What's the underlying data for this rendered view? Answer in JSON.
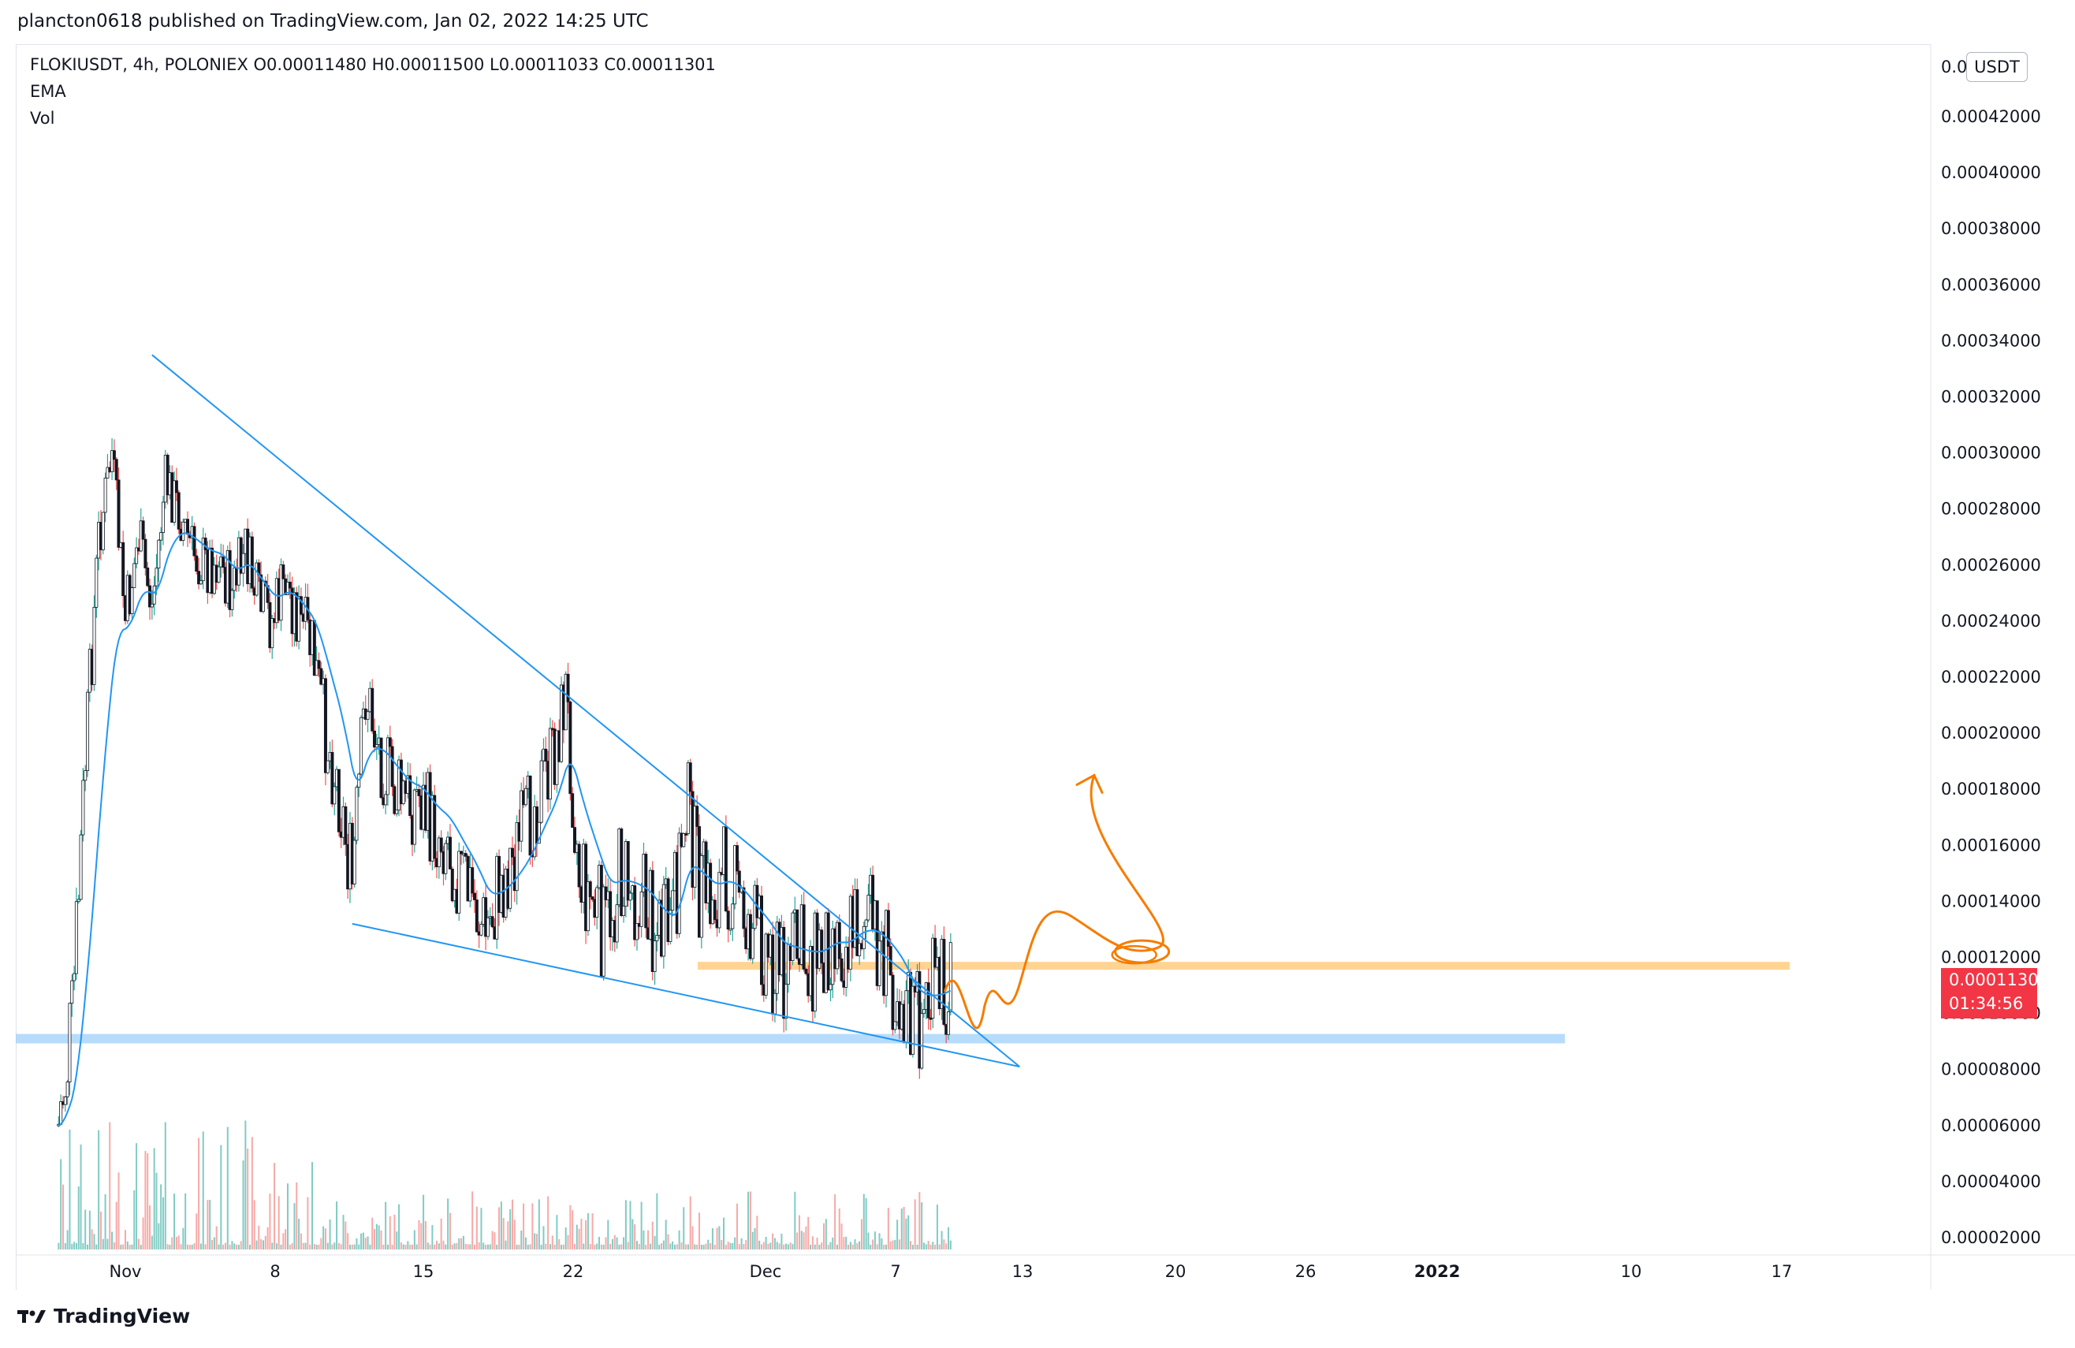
{
  "header": {
    "publisher_line": "plancton0618 published on TradingView.com, Jan 02, 2022 14:25 UTC"
  },
  "legend": {
    "symbol_line": "FLOKIUSDT, 4h, POLONIEX  O0.00011480  H0.00011500  L0.00011033  C0.00011301",
    "ema_label": "EMA",
    "vol_label": "Vol"
  },
  "price_axis": {
    "currency_badge": "USDT",
    "top_partial_label": "0.0",
    "labels": [
      "0.00042000",
      "0.00040000",
      "0.00038000",
      "0.00036000",
      "0.00034000",
      "0.00032000",
      "0.00030000",
      "0.00028000",
      "0.00026000",
      "0.00024000",
      "0.00022000",
      "0.00020000",
      "0.00018000",
      "0.00016000",
      "0.00014000",
      "0.00012000",
      "0.00010000",
      "0.00008000",
      "0.00006000",
      "0.00004000",
      "0.00002000"
    ]
  },
  "last_price": {
    "value": "0.00011301",
    "countdown": "01:34:56",
    "color": "#f23645"
  },
  "time_axis": {
    "labels": [
      {
        "text": "Nov",
        "bold": false
      },
      {
        "text": "8",
        "bold": false
      },
      {
        "text": "15",
        "bold": false
      },
      {
        "text": "22",
        "bold": false
      },
      {
        "text": "Dec",
        "bold": false
      },
      {
        "text": "7",
        "bold": false
      },
      {
        "text": "13",
        "bold": false
      },
      {
        "text": "20",
        "bold": false
      },
      {
        "text": "26",
        "bold": false
      },
      {
        "text": "2022",
        "bold": true
      },
      {
        "text": "10",
        "bold": false
      },
      {
        "text": "17",
        "bold": false
      }
    ]
  },
  "footer": {
    "brand": "TradingView"
  },
  "colors": {
    "up": "#26a69a",
    "down": "#ef5350",
    "candle_body": "#131722",
    "ema": "#2196f3",
    "trendline": "#2196f3",
    "drawing": "#f57c00",
    "support_zone": "#ffcc80",
    "lower_zone": "#90caf9"
  },
  "chart_data": {
    "type": "candlestick",
    "symbol": "FLOKIUSDT",
    "interval": "4h",
    "exchange": "POLONIEX",
    "ohlc_last": {
      "open": 0.0001148,
      "high": 0.000115,
      "low": 0.00011033,
      "close": 0.00011301
    },
    "ylim": [
      2e-05,
      0.00043
    ],
    "close_path": [
      [
        "2021-10-27",
        6e-05
      ],
      [
        "2021-10-28",
        9.5e-05
      ],
      [
        "2021-10-29",
        0.00019
      ],
      [
        "2021-10-30",
        0.00027
      ],
      [
        "2021-10-31",
        0.0003
      ],
      [
        "2021-11-01",
        0.00024
      ],
      [
        "2021-11-02",
        0.00027
      ],
      [
        "2021-11-03",
        0.000245
      ],
      [
        "2021-11-04",
        0.00029
      ],
      [
        "2021-11-05",
        0.00028
      ],
      [
        "2021-11-06",
        0.000265
      ],
      [
        "2021-11-07",
        0.00026
      ],
      [
        "2021-11-08",
        0.000262
      ],
      [
        "2021-11-09",
        0.00025
      ],
      [
        "2021-11-10",
        0.000265
      ],
      [
        "2021-11-11",
        0.000245
      ],
      [
        "2021-11-12",
        0.00024
      ],
      [
        "2021-11-13",
        0.000255
      ],
      [
        "2021-11-14",
        0.00024
      ],
      [
        "2021-11-15",
        0.00023
      ],
      [
        "2021-11-16",
        0.0002
      ],
      [
        "2021-11-17",
        0.00018
      ],
      [
        "2021-11-18",
        0.000145
      ],
      [
        "2021-11-19",
        0.000215
      ],
      [
        "2021-11-20",
        0.000195
      ],
      [
        "2021-11-21",
        0.00018
      ],
      [
        "2021-11-22",
        0.000175
      ],
      [
        "2021-11-23",
        0.000178
      ],
      [
        "2021-11-24",
        0.000165
      ],
      [
        "2021-11-25",
        0.000165
      ],
      [
        "2021-11-26",
        0.00015
      ],
      [
        "2021-11-27",
        0.000142
      ],
      [
        "2021-11-28",
        0.000128
      ],
      [
        "2021-11-29",
        0.000145
      ],
      [
        "2021-11-30",
        0.000155
      ],
      [
        "2021-12-01",
        0.000165
      ],
      [
        "2021-12-02",
        0.00018
      ],
      [
        "2021-12-03",
        0.00019
      ],
      [
        "2021-12-04",
        0.000215
      ],
      [
        "2021-12-05",
        0.00015
      ],
      [
        "2021-12-06",
        0.00014
      ],
      [
        "2021-12-07",
        0.000128
      ],
      [
        "2021-12-08",
        0.00015
      ],
      [
        "2021-12-09",
        0.000145
      ],
      [
        "2021-12-10",
        0.00014
      ],
      [
        "2021-12-11",
        0.000128
      ],
      [
        "2021-12-12",
        0.00013
      ],
      [
        "2021-12-13",
        0.00018
      ],
      [
        "2021-12-14",
        0.000145
      ],
      [
        "2021-12-15",
        0.00014
      ],
      [
        "2021-12-16",
        0.00015
      ],
      [
        "2021-12-17",
        0.00014
      ],
      [
        "2021-12-18",
        0.00013
      ],
      [
        "2021-12-19",
        0.000125
      ],
      [
        "2021-12-20",
        0.000115
      ],
      [
        "2021-12-21",
        0.000122
      ],
      [
        "2021-12-22",
        0.00012
      ],
      [
        "2021-12-23",
        0.000122
      ],
      [
        "2021-12-24",
        0.00013
      ],
      [
        "2021-12-25",
        0.000125
      ],
      [
        "2021-12-26",
        0.000135
      ],
      [
        "2021-12-27",
        0.00013
      ],
      [
        "2021-12-28",
        0.00012
      ],
      [
        "2021-12-29",
        0.00011
      ],
      [
        "2021-12-30",
        9.5e-05
      ],
      [
        "2021-12-31",
        0.000103
      ],
      [
        "2022-01-01",
        0.000108
      ],
      [
        "2022-01-02",
        0.000113
      ]
    ],
    "annotations": {
      "wedge_upper_line": [
        [
          "2021-11-03",
          0.000335
        ],
        [
          "2022-01-07",
          8.1e-05
        ]
      ],
      "wedge_lower_line": [
        [
          "2021-11-18",
          0.000132
        ],
        [
          "2022-01-07",
          8.1e-05
        ]
      ],
      "support_zone": 0.000117,
      "lower_zone": 9.1e-05,
      "projection_arrow_target": 0.000185
    }
  }
}
